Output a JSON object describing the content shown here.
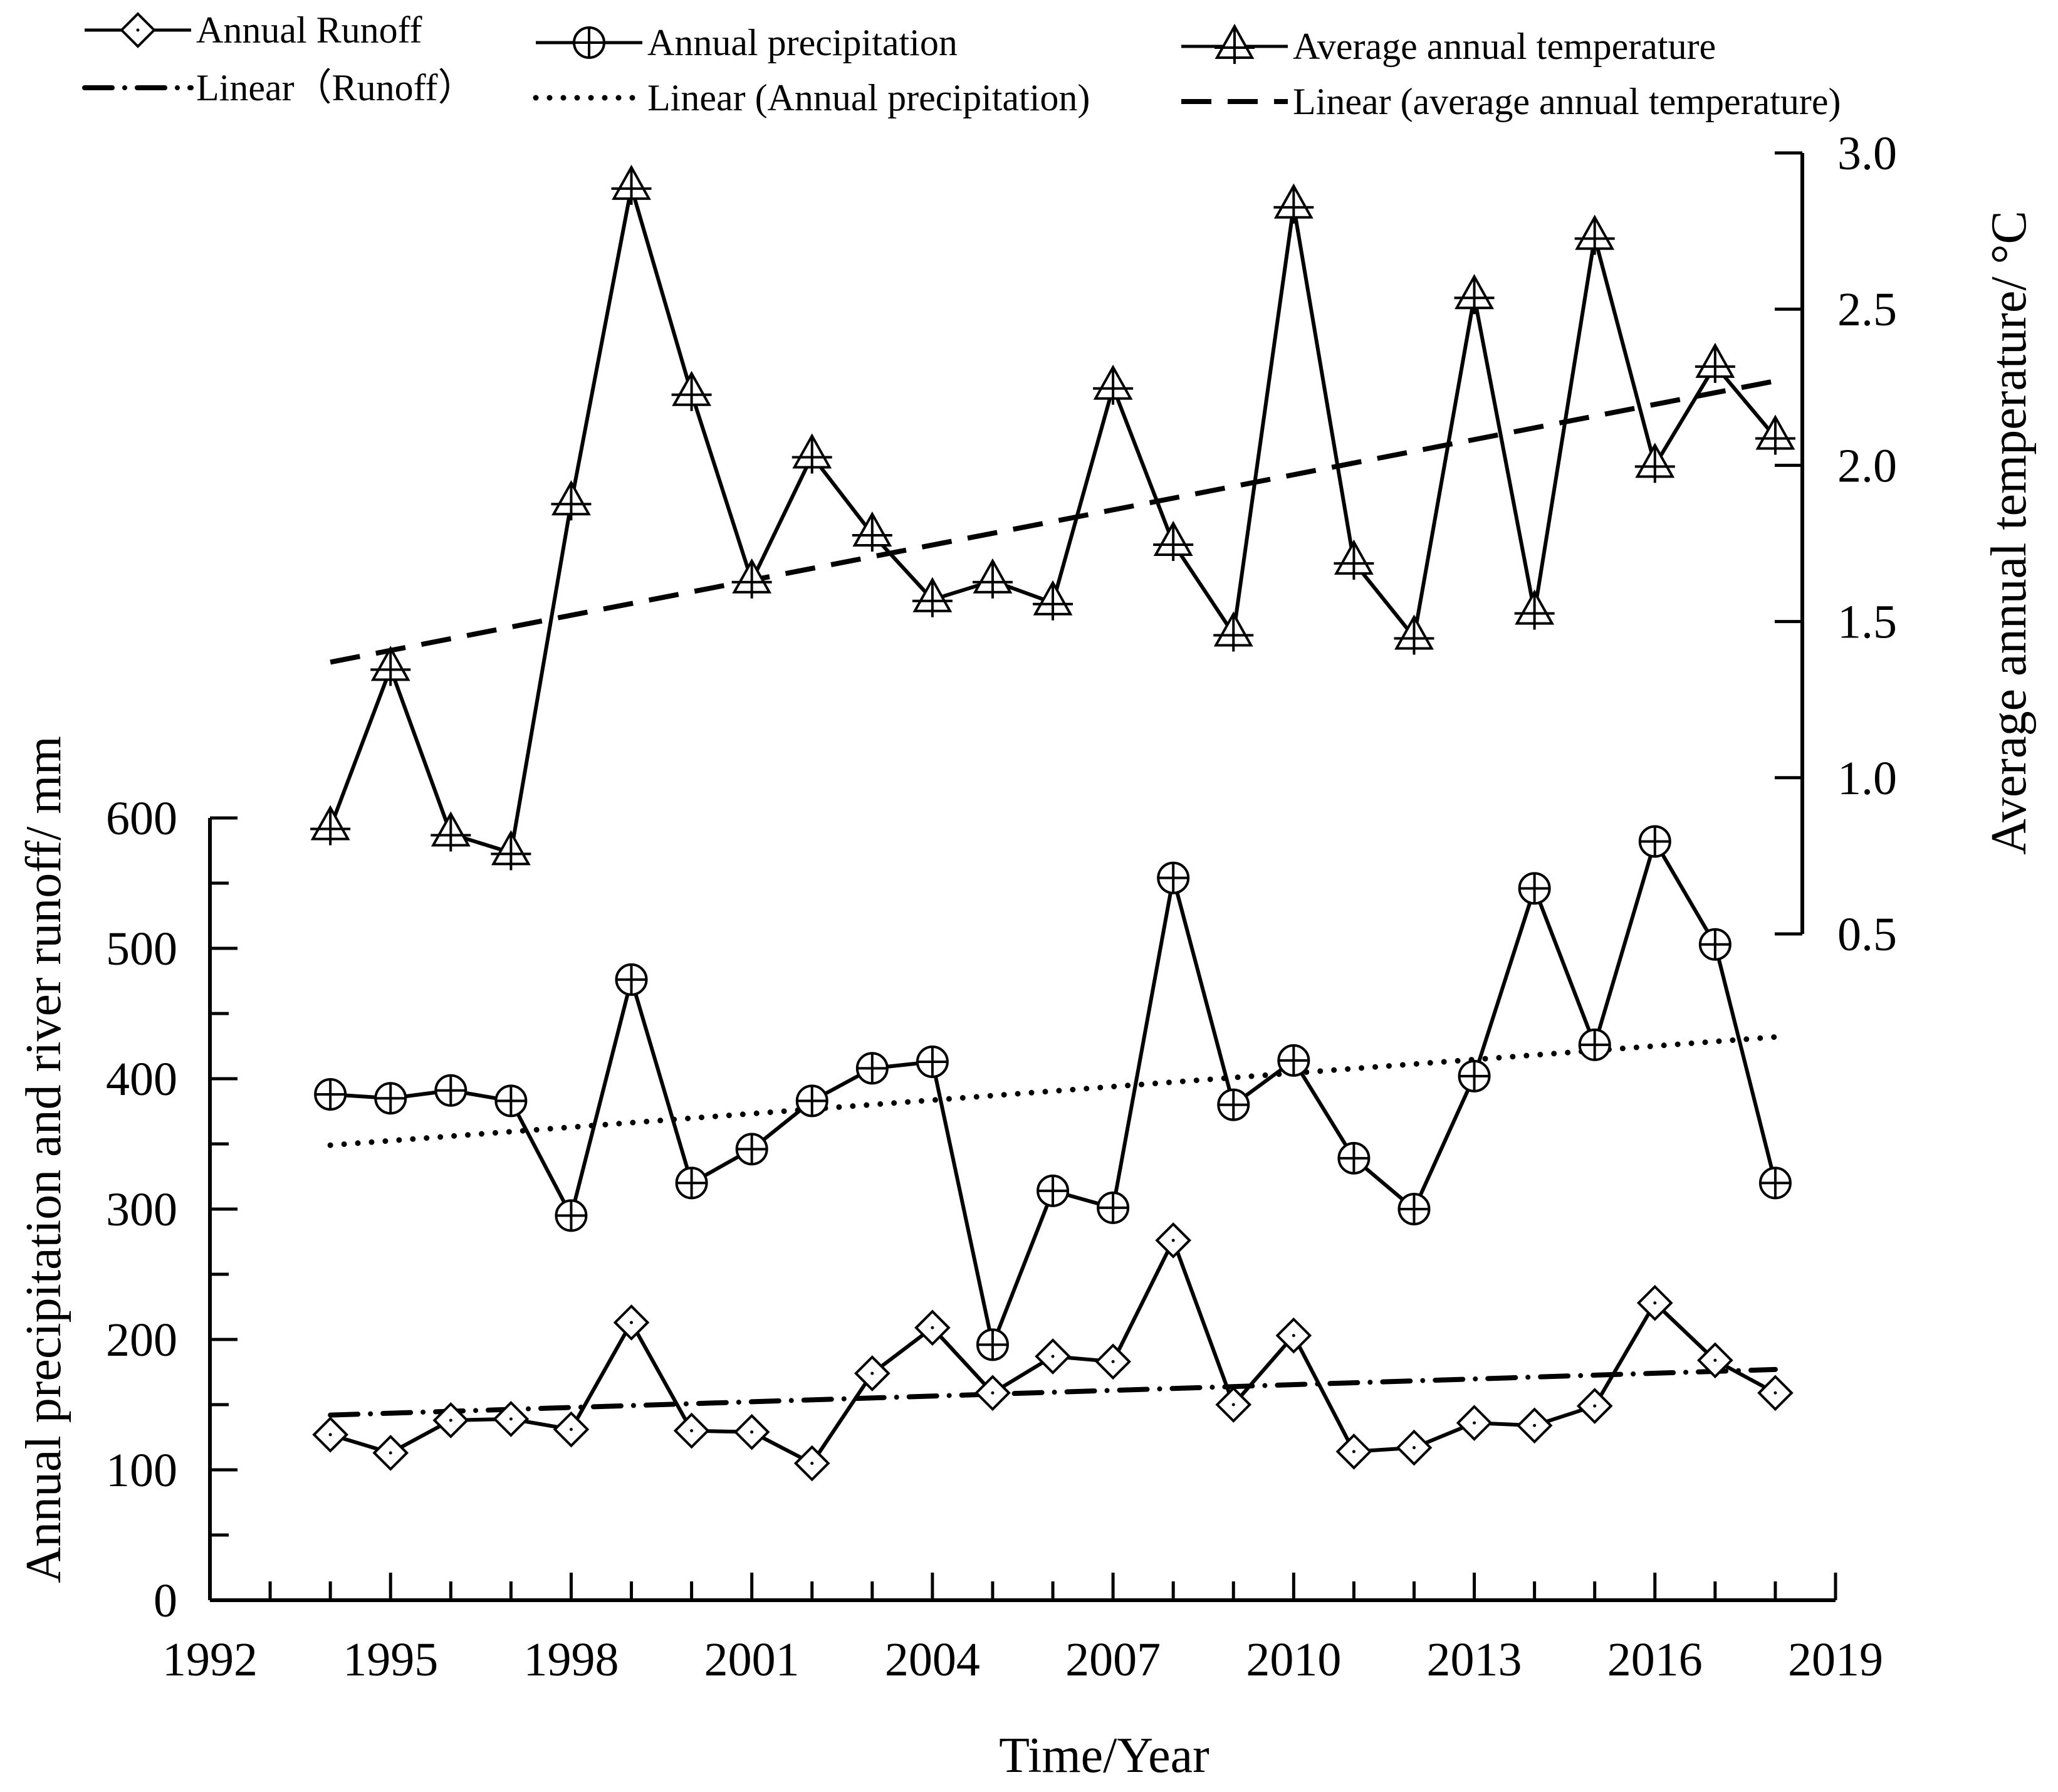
{
  "chart_data": {
    "type": "line",
    "x": [
      1994,
      1995,
      1996,
      1997,
      1998,
      1999,
      2000,
      2001,
      2002,
      2003,
      2004,
      2005,
      2006,
      2007,
      2008,
      2009,
      2010,
      2011,
      2012,
      2013,
      2014,
      2015,
      2016,
      2017,
      2018
    ],
    "series": [
      {
        "name": "Annual Runoff",
        "axis": "left",
        "marker": "diamond",
        "values": [
          127,
          113,
          138,
          139,
          131,
          213,
          130,
          129,
          105,
          174,
          209,
          159,
          187,
          183,
          276,
          150,
          203,
          114,
          117,
          136,
          134,
          149,
          228,
          184,
          159
        ]
      },
      {
        "name": "Annual precipitation",
        "axis": "left",
        "marker": "circle-plus",
        "values": [
          388,
          385,
          391,
          383,
          295,
          476,
          320,
          346,
          383,
          408,
          413,
          196,
          314,
          301,
          554,
          380,
          414,
          339,
          300,
          402,
          546,
          426,
          582,
          503,
          320
        ]
      },
      {
        "name": "Average annual temperature",
        "axis": "right",
        "marker": "triangle",
        "values": [
          0.84,
          1.35,
          0.82,
          0.76,
          1.88,
          2.89,
          2.23,
          1.63,
          2.03,
          1.78,
          1.57,
          1.63,
          1.56,
          2.25,
          1.75,
          1.46,
          2.83,
          1.69,
          1.45,
          2.54,
          1.53,
          2.73,
          2.0,
          2.32,
          2.09
        ]
      }
    ],
    "trendlines": [
      {
        "name": "Linear（Runoff）",
        "of": "Annual Runoff",
        "axis": "left",
        "style": "dash-dot",
        "start": [
          1994,
          142
        ],
        "end": [
          2018,
          177
        ]
      },
      {
        "name": "Linear (Annual precipitation)",
        "of": "Annual precipitation",
        "axis": "left",
        "style": "dotted",
        "start": [
          1994,
          349
        ],
        "end": [
          2018,
          432
        ]
      },
      {
        "name": "Linear (average annual temperature)",
        "of": "Average annual temperature",
        "axis": "right",
        "style": "dashed",
        "start": [
          1994,
          1.37
        ],
        "end": [
          2018,
          2.27
        ]
      }
    ],
    "title": "",
    "xlabel": "Time/Year",
    "ylabel": "Annual precipitation and river runoff/ mm",
    "y2label": "Average annual temperature/ °C",
    "xlim": [
      1992,
      2019
    ],
    "ylim": [
      0,
      600
    ],
    "y2lim": [
      0.5,
      3.0
    ],
    "x_ticks": [
      "1992",
      "1995",
      "1998",
      "2001",
      "2004",
      "2007",
      "2010",
      "2013",
      "2016",
      "2019"
    ],
    "y_ticks": [
      "0",
      "100",
      "200",
      "300",
      "400",
      "500",
      "600"
    ],
    "y2_ticks": [
      "0.5",
      "1.0",
      "1.5",
      "2.0",
      "2.5",
      "3.0"
    ],
    "legend_position": "top",
    "legend": [
      "Annual Runoff",
      "Annual precipitation",
      "Average annual temperature",
      "Linear（Runoff）",
      "Linear (Annual precipitation)",
      "Linear (average annual temperature)"
    ],
    "grid": false
  }
}
